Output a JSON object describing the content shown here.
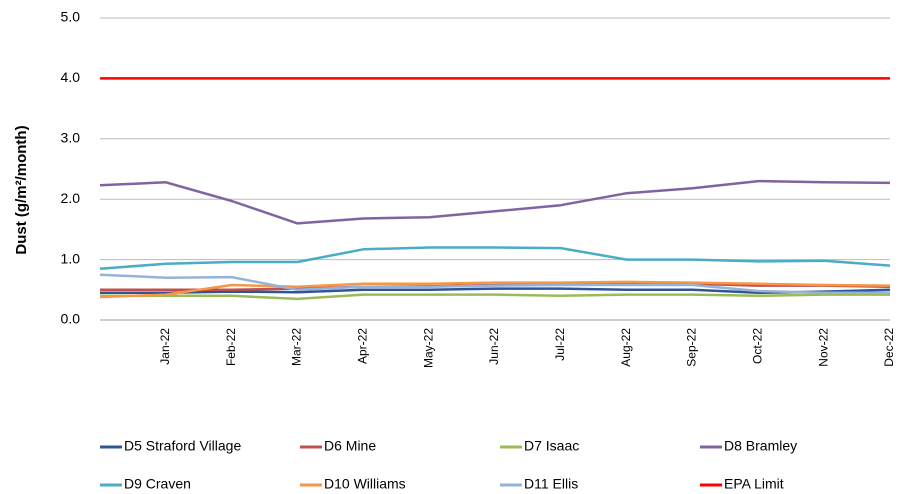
{
  "chart_data": {
    "type": "line",
    "ylabel": "Dust (g/m²/month)",
    "categories": [
      null,
      "Jan-22",
      "Feb-22",
      "Mar-22",
      "Apr-22",
      "May-22",
      "Jun-22",
      "Jul-22",
      "Aug-22",
      "Sep-22",
      "Oct-22",
      "Nov-22",
      "Dec-22"
    ],
    "ylim": [
      0,
      5
    ],
    "yticks": [
      {
        "value": 0,
        "label": "0.0"
      },
      {
        "value": 1,
        "label": "1.0"
      },
      {
        "value": 2,
        "label": "2.0"
      },
      {
        "value": 3,
        "label": "3.0"
      },
      {
        "value": 4,
        "label": "4.0"
      },
      {
        "value": 5,
        "label": "5.0"
      }
    ],
    "grid": true,
    "legend": "bottom",
    "series": [
      {
        "name": "D5 Straford Village",
        "color": "#2f5597",
        "values": [
          0.45,
          0.45,
          0.47,
          0.46,
          0.5,
          0.5,
          0.52,
          0.52,
          0.5,
          0.5,
          0.45,
          0.47,
          0.5
        ]
      },
      {
        "name": "D6 Mine",
        "color": "#c0504d",
        "values": [
          0.5,
          0.5,
          0.5,
          0.52,
          0.55,
          0.56,
          0.58,
          0.6,
          0.6,
          0.6,
          0.57,
          0.57,
          0.55
        ]
      },
      {
        "name": "D7 Isaac",
        "color": "#9bbb59",
        "values": [
          0.4,
          0.4,
          0.4,
          0.35,
          0.42,
          0.42,
          0.42,
          0.4,
          0.42,
          0.42,
          0.4,
          0.42,
          0.42
        ]
      },
      {
        "name": "D8 Bramley",
        "color": "#8064a2",
        "values": [
          2.23,
          2.28,
          1.97,
          1.6,
          1.68,
          1.7,
          1.8,
          1.9,
          2.1,
          2.18,
          2.3,
          2.28,
          2.27
        ]
      },
      {
        "name": "D9 Craven",
        "color": "#4bacc6",
        "values": [
          0.85,
          0.93,
          0.96,
          0.96,
          1.17,
          1.2,
          1.2,
          1.19,
          1.0,
          1.0,
          0.97,
          0.98,
          0.9
        ]
      },
      {
        "name": "D10 Williams",
        "color": "#f79646",
        "values": [
          0.38,
          0.42,
          0.58,
          0.55,
          0.6,
          0.6,
          0.62,
          0.62,
          0.63,
          0.62,
          0.6,
          0.58,
          0.57
        ]
      },
      {
        "name": "D11 Ellis",
        "color": "#95b3d7",
        "values": [
          0.75,
          0.7,
          0.71,
          0.5,
          0.55,
          0.55,
          0.57,
          0.58,
          0.58,
          0.58,
          0.48,
          0.45,
          0.45
        ]
      },
      {
        "name": "EPA Limit",
        "color": "#ff0000",
        "values": [
          4,
          4,
          4,
          4,
          4,
          4,
          4,
          4,
          4,
          4,
          4,
          4,
          4
        ]
      }
    ]
  }
}
